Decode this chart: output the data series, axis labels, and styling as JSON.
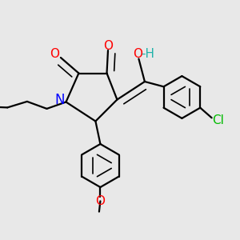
{
  "bg_color": "#e8e8e8",
  "atom_colors": {
    "O": "#ff0000",
    "N": "#0000ff",
    "Cl": "#00bb00",
    "C": "#000000",
    "H": "#20b2aa"
  },
  "bond_color": "#000000",
  "font_size_atoms": 11,
  "fig_size": [
    3.0,
    3.0
  ],
  "dpi": 100
}
